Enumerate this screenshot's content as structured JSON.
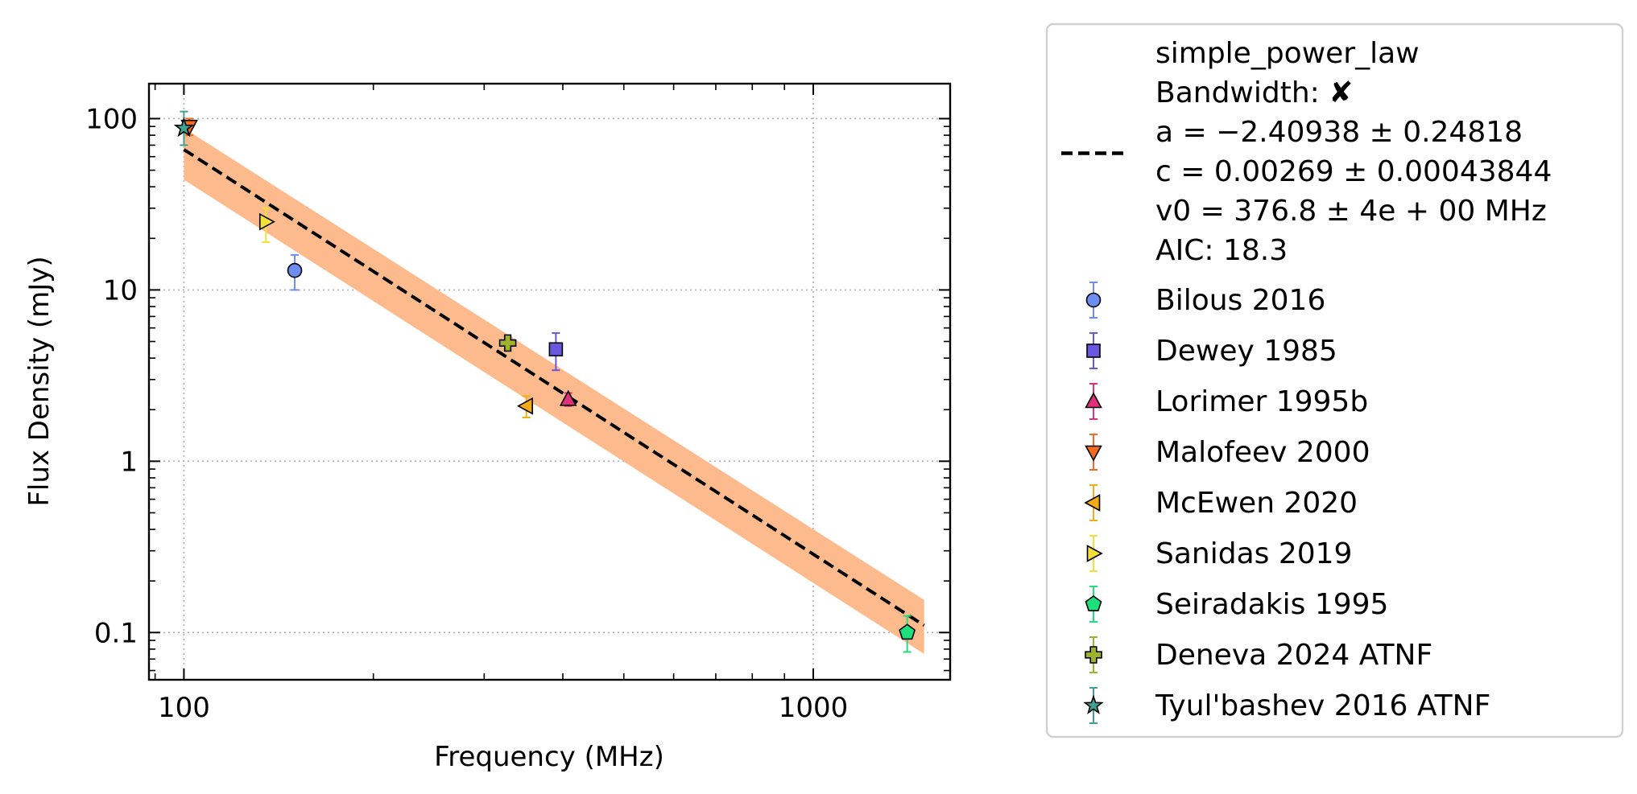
{
  "chart_data": {
    "type": "scatter",
    "xlabel": "Frequency (MHz)",
    "ylabel": "Flux Density (mJy)",
    "xscale": "log",
    "yscale": "log",
    "xlim": [
      88,
      1650
    ],
    "ylim": [
      0.053,
      160
    ],
    "grid": true,
    "legend_position": "outside-right",
    "x_ticks": [
      {
        "value": 100,
        "label": "100"
      },
      {
        "value": 1000,
        "label": "1000"
      }
    ],
    "y_ticks": [
      {
        "value": 0.1,
        "label": "0.1"
      },
      {
        "value": 1,
        "label": "1"
      },
      {
        "value": 10,
        "label": "10"
      },
      {
        "value": 100,
        "label": "100"
      }
    ],
    "fit": {
      "model_label": "simple_power_law",
      "legend_lines": [
        "simple_power_law",
        "Bandwidth: ✘",
        "a = −2.40938 ± 0.24818",
        "c = 0.00269 ± 0.00043844",
        "v0 = 376.8 ± 4e + 00 MHz",
        "AIC: 18.3"
      ],
      "x_range": [
        100,
        1500
      ],
      "y_range": [
        66,
        0.11
      ],
      "band_low": [
        44,
        0.075
      ],
      "band_high": [
        88,
        0.155
      ],
      "line_color": "#000000",
      "band_color": "#fdba8c"
    },
    "series": [
      {
        "name": "Bilous 2016",
        "marker": "circle",
        "color": "#6d8ef0",
        "points": [
          {
            "x": 150,
            "y": 13,
            "ylo": 10,
            "yhi": 16
          }
        ]
      },
      {
        "name": "Dewey 1985",
        "marker": "square",
        "color": "#6a57e0",
        "points": [
          {
            "x": 390,
            "y": 4.5,
            "ylo": 3.4,
            "yhi": 5.6
          }
        ]
      },
      {
        "name": "Lorimer 1995b",
        "marker": "triangle-up",
        "color": "#e0317d",
        "points": [
          {
            "x": 408,
            "y": 2.3,
            "ylo": 2.1,
            "yhi": 2.5
          }
        ]
      },
      {
        "name": "Malofeev 2000",
        "marker": "triangle-down",
        "color": "#f56a1d",
        "points": [
          {
            "x": 102,
            "y": 90,
            "ylo": 80,
            "yhi": 100
          }
        ]
      },
      {
        "name": "McEwen 2020",
        "marker": "triangle-left",
        "color": "#f5ab14",
        "points": [
          {
            "x": 350,
            "y": 2.1,
            "ylo": 1.8,
            "yhi": 2.4
          }
        ]
      },
      {
        "name": "Sanidas 2019",
        "marker": "triangle-right",
        "color": "#f5e03a",
        "points": [
          {
            "x": 135,
            "y": 25,
            "ylo": 19,
            "yhi": 30
          }
        ]
      },
      {
        "name": "Seiradakis 1995",
        "marker": "pentagon",
        "color": "#1de07a",
        "points": [
          {
            "x": 1410,
            "y": 0.1,
            "ylo": 0.077,
            "yhi": 0.125
          }
        ]
      },
      {
        "name": "Deneva 2024 ATNF",
        "marker": "plus",
        "color": "#9fb22a",
        "points": [
          {
            "x": 327,
            "y": 4.9,
            "ylo": 4.4,
            "yhi": 5.3
          }
        ]
      },
      {
        "name": "Tyul'bashev 2016 ATNF",
        "marker": "star",
        "color": "#3ea290",
        "points": [
          {
            "x": 100,
            "y": 88,
            "ylo": 70,
            "yhi": 110
          }
        ]
      }
    ]
  }
}
